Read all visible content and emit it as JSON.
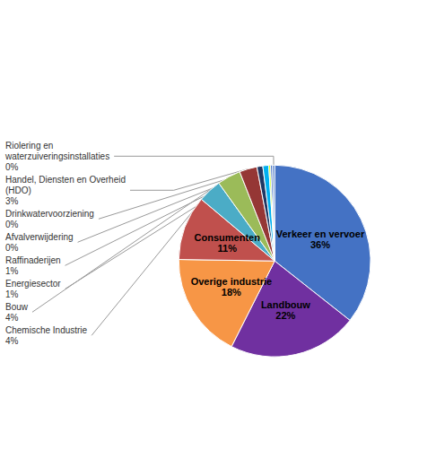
{
  "chart_data": {
    "type": "pie",
    "categories": [
      "Verkeer en vervoer",
      "Landbouw",
      "Overige industrie",
      "Consumenten",
      "Chemische Industrie",
      "Bouw",
      "Handel, Diensten en Overheid\n(HDO)",
      "Energiesector",
      "Raffinaderijen",
      "Afvalverwijdering",
      "Drinkwatervoorziening",
      "Riolering en\nwaterzuiveringsinstallaties"
    ],
    "values": [
      36,
      22,
      18,
      11,
      4,
      4,
      3,
      1,
      1,
      0.3,
      0.35,
      0.35
    ],
    "value_labels": [
      "36%",
      "22%",
      "18%",
      "11%",
      "4%",
      "4%",
      "3%",
      "1%",
      "1%",
      "0%",
      "0%",
      "0%"
    ],
    "colors": [
      "#4472C4",
      "#7030A0",
      "#F79646",
      "#C0504D",
      "#4BACC6",
      "#9BBB59",
      "#953735",
      "#1F3864",
      "#00B0F0",
      "#CCFF00",
      "#4472C4",
      "#4472C4"
    ],
    "data_labels": true
  }
}
